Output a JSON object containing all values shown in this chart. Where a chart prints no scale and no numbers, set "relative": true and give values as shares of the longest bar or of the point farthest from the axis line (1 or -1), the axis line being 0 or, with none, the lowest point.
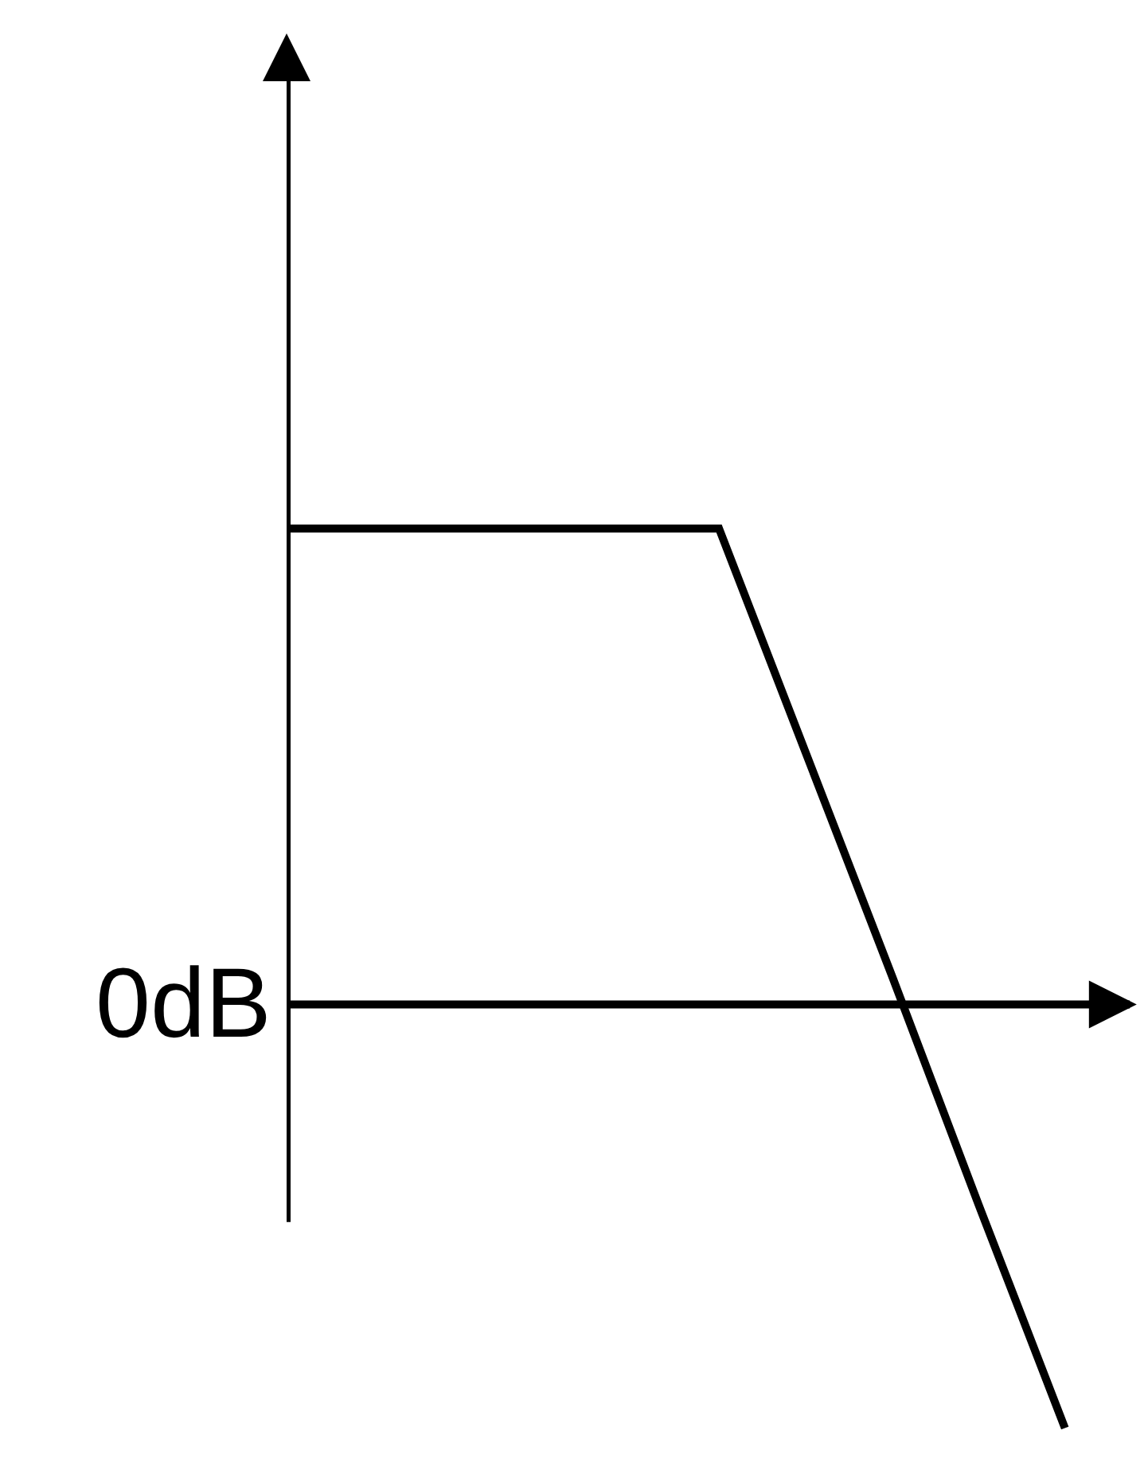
{
  "chart_data": {
    "type": "line",
    "relative": true,
    "categories": [
      null,
      null,
      null,
      null,
      null,
      null,
      null,
      null,
      null,
      null
    ],
    "series": [
      {
        "color": "#000000",
        "values": [
          1,
          1,
          1,
          1,
          1,
          1,
          0.53,
          0.06,
          -0.42,
          -0.89
        ]
      }
    ],
    "ref_lines": [
      {
        "axis": "y",
        "value": 0,
        "color": "#000000"
      }
    ],
    "annotations": [
      "0dB"
    ],
    "marker": "none",
    "line_style": "solid"
  }
}
